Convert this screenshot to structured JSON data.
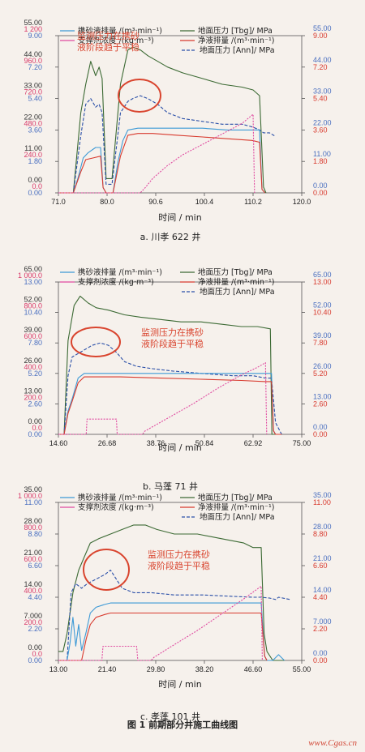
{
  "figure_caption": "图 1 前期部分井施工曲线图",
  "watermark": "www.Cgas.cn",
  "chart_data": [
    {
      "type": "line",
      "subcaption": "a. 川孝 622 井",
      "xlabel": "时间 / min",
      "x_ticks": [
        "71.0",
        "80.0",
        "90.6",
        "100.4",
        "110.2",
        "120.0"
      ],
      "xlim": [
        71.0,
        120.0
      ],
      "left_axes": [
        {
          "name": "c1",
          "color": "#4a6fc0",
          "ticks": [
            "0.00",
            "1.80",
            "3.60",
            "5.40",
            "7.20",
            "9.00"
          ],
          "min": 0,
          "max": 9
        },
        {
          "name": "c2",
          "color": "#d83a6a",
          "ticks": [
            "0.0",
            "240.0",
            "480.0",
            "720.0",
            "960.0",
            "1 200"
          ],
          "min": 0,
          "max": 1200
        },
        {
          "name": "c3",
          "color": "#333333",
          "ticks": [
            "0.00",
            "11.00",
            "22.00",
            "33.00",
            "44.00",
            "55.00"
          ],
          "min": 0,
          "max": 55
        }
      ],
      "right_axes": [
        {
          "name": "r1",
          "color": "#d83a2e",
          "ticks": [
            "0.00",
            "1.80",
            "3.60",
            "5.40",
            "7.20",
            "9.00"
          ],
          "min": 0,
          "max": 9
        },
        {
          "name": "r2",
          "color": "#4a6fc0",
          "ticks": [
            "0.00",
            "11.00",
            "22.00",
            "33.00",
            "44.00",
            "55.00"
          ],
          "min": 0,
          "max": 55
        }
      ],
      "legend": [
        "携砂液排量 /(m³·min⁻¹)",
        "支撑剂浓度 /(kg·m⁻³)",
        "地面压力 [Tbg]/ MPa",
        "净液排量 /(m³·min⁻¹)",
        "地面压力 [Ann]/ MPa"
      ],
      "annotation": [
        "监测压力在携砂",
        "液阶段趋于平稳"
      ],
      "series": [
        {
          "name": "地面压力 [Tbg]/ MPa",
          "color": "#3c6a34",
          "axis": "c3",
          "x": [
            71,
            74,
            75.5,
            76.5,
            77.5,
            78.5,
            79.2,
            79.8,
            80.6,
            81.8,
            83.5,
            85,
            86,
            87.5,
            89,
            91,
            93,
            96,
            100,
            104,
            108,
            110.2,
            111.5,
            112.3,
            112.8
          ],
          "y": [
            0,
            0,
            28,
            38,
            46,
            41,
            44,
            40,
            5,
            5,
            38,
            50,
            51,
            50,
            48,
            46,
            44,
            42,
            40,
            38,
            37,
            36,
            34,
            2,
            0
          ]
        },
        {
          "name": "地面压力 [Ann]/ MPa",
          "color": "#2a4fa8",
          "axis": "c3",
          "x": [
            71,
            74,
            75.5,
            76.5,
            77.5,
            78.5,
            79.2,
            79.8,
            80.6,
            81.8,
            83.5,
            85,
            86,
            87.5,
            89,
            91,
            93,
            96,
            100,
            104,
            108,
            110.2,
            111.5,
            112.3,
            113.5,
            114.5
          ],
          "y": [
            0,
            0,
            20,
            31,
            33,
            30,
            31,
            28,
            3,
            3,
            28,
            32,
            33,
            34,
            33,
            31,
            28,
            26,
            25,
            24,
            24,
            23,
            22,
            21,
            21,
            20
          ]
        },
        {
          "name": "携砂液排量 /(m³·min⁻¹)",
          "color": "#3d9ad6",
          "axis": "r1",
          "x": [
            71,
            74,
            75,
            76,
            77,
            78.5,
            79.5,
            80,
            80.6,
            82,
            83,
            84,
            85,
            87,
            90,
            95,
            100,
            105,
            110,
            111.5,
            112,
            112.6
          ],
          "y": [
            0,
            0,
            0.9,
            2.0,
            2.3,
            2.6,
            2.6,
            0.3,
            0,
            0,
            1.8,
            3.0,
            3.6,
            3.7,
            3.7,
            3.7,
            3.7,
            3.6,
            3.6,
            3.6,
            0.2,
            0
          ]
        },
        {
          "name": "净液排量 /(m³·min⁻¹)",
          "color": "#d83a2e",
          "axis": "r1",
          "x": [
            71,
            74,
            75.5,
            76.5,
            78,
            79.5,
            80,
            80.6,
            82,
            83.5,
            85,
            87,
            90,
            95,
            100,
            105,
            110,
            111.5,
            112,
            112.6
          ],
          "y": [
            0,
            0,
            1.2,
            1.9,
            2.0,
            2.1,
            0.3,
            0,
            0,
            2.1,
            3.3,
            3.4,
            3.4,
            3.3,
            3.2,
            3.1,
            3.0,
            2.9,
            0.2,
            0
          ]
        },
        {
          "name": "支撑剂浓度 /(kg·m⁻³)",
          "color": "#e04aa0",
          "axis": "c2",
          "x": [
            71,
            87.5,
            88.5,
            90,
            93,
            96,
            100,
            104,
            108,
            110.2,
            110.5
          ],
          "y": [
            0,
            0,
            40,
            110,
            210,
            290,
            370,
            450,
            530,
            600,
            0
          ]
        }
      ]
    },
    {
      "type": "line",
      "subcaption": "b. 马蓬 71 井",
      "xlabel": "时间 / min",
      "x_ticks": [
        "14.60",
        "26.68",
        "38.76",
        "50.84",
        "62.92",
        "75.00"
      ],
      "xlim": [
        14.6,
        75.0
      ],
      "left_axes": [
        {
          "name": "c1",
          "color": "#4a6fc0",
          "ticks": [
            "0.00",
            "2.60",
            "5.20",
            "7.80",
            "10.40",
            "13.00"
          ],
          "min": 0,
          "max": 13
        },
        {
          "name": "c2",
          "color": "#d83a6a",
          "ticks": [
            "0.0",
            "200.0",
            "400.0",
            "600.0",
            "800.0",
            "1 000.0"
          ],
          "min": 0,
          "max": 1000
        },
        {
          "name": "c3",
          "color": "#333333",
          "ticks": [
            "0.00",
            "13.00",
            "26.00",
            "39.00",
            "52.00",
            "65.00"
          ],
          "min": 0,
          "max": 65
        }
      ],
      "right_axes": [
        {
          "name": "r1",
          "color": "#d83a2e",
          "ticks": [
            "0.00",
            "2.60",
            "5.20",
            "7.80",
            "10.40",
            "13.00"
          ],
          "min": 0,
          "max": 13
        },
        {
          "name": "r2",
          "color": "#4a6fc0",
          "ticks": [
            "0.00",
            "13.00",
            "26.00",
            "39.00",
            "52.00",
            "65.00"
          ],
          "min": 0,
          "max": 65
        }
      ],
      "legend": [
        "携砂液排量 /(m³·min⁻¹)",
        "地面压力 [Tbg]/ MPa",
        "支撑剂浓度 /(kg·m⁻³)",
        "净液排量 /(m³·min⁻¹)",
        "地面压力 [Ann]/ MPa"
      ],
      "annotation": [
        "监测压力在携砂",
        "液阶段趋于平稳"
      ],
      "series": [
        {
          "name": "地面压力 [Tbg]/ MPa",
          "color": "#3c6a34",
          "axis": "c3",
          "x": [
            14.6,
            16,
            17,
            18.5,
            20,
            22,
            24,
            27,
            31,
            35,
            40,
            45,
            50,
            55,
            60,
            64,
            67.2,
            67.6,
            68.5,
            70
          ],
          "y": [
            0,
            0,
            40,
            55,
            59,
            56,
            54,
            53,
            51,
            50,
            49,
            48,
            48,
            47,
            46,
            46,
            45,
            0,
            0,
            0
          ]
        },
        {
          "name": "地面压力 [Ann]/ MPa",
          "color": "#2a4fa8",
          "axis": "c3",
          "x": [
            14.6,
            16,
            17,
            18,
            19,
            21,
            23,
            25,
            27,
            29,
            31,
            34,
            38,
            43,
            50,
            58,
            63,
            66,
            67.5,
            68.5,
            70
          ],
          "y": [
            0,
            0,
            25,
            33,
            34,
            36,
            38,
            39,
            38,
            35,
            31,
            29,
            28,
            27,
            26,
            25,
            25,
            24,
            24,
            5,
            0
          ]
        },
        {
          "name": "携砂液排量 /(m³·min⁻¹)",
          "color": "#3d9ad6",
          "axis": "r1",
          "x": [
            14.6,
            16,
            17,
            18,
            19.5,
            21,
            30,
            40,
            50,
            60,
            66,
            67.5,
            68,
            68.5
          ],
          "y": [
            0,
            0,
            2.0,
            3.0,
            4.8,
            5.2,
            5.2,
            5.2,
            5.2,
            5.2,
            5.2,
            5.2,
            0.3,
            0
          ]
        },
        {
          "name": "净液排量 /(m³·min⁻¹)",
          "color": "#d83a2e",
          "axis": "r1",
          "x": [
            14.6,
            16,
            17,
            18,
            19.5,
            21,
            30,
            40,
            50,
            60,
            66,
            67.5,
            68,
            68.5,
            70
          ],
          "y": [
            0,
            0,
            1.8,
            2.8,
            4.4,
            4.9,
            4.9,
            4.8,
            4.7,
            4.6,
            4.5,
            4.5,
            0.3,
            0,
            0
          ]
        },
        {
          "name": "支撑剂浓度 /(kg·m⁻³)",
          "color": "#e04aa0",
          "axis": "c2",
          "x": [
            14.6,
            21.5,
            21.7,
            29,
            29.2,
            35.5,
            36,
            42,
            48,
            54,
            60,
            64,
            66,
            66.3
          ],
          "y": [
            0,
            0,
            100,
            100,
            0,
            0,
            20,
            110,
            200,
            300,
            390,
            440,
            470,
            0
          ]
        }
      ]
    },
    {
      "type": "line",
      "subcaption": "c. 孝蓬 101 井",
      "xlabel": "时间 / min",
      "x_ticks": [
        "13.00",
        "21.40",
        "29.80",
        "38.20",
        "46.60",
        "55.00"
      ],
      "xlim": [
        13.0,
        55.0
      ],
      "left_axes": [
        {
          "name": "c1",
          "color": "#4a6fc0",
          "ticks": [
            "0.00",
            "2.20",
            "4.40",
            "6.60",
            "8.80",
            "11.00"
          ],
          "min": 0,
          "max": 11
        },
        {
          "name": "c2",
          "color": "#d83a6a",
          "ticks": [
            "0.0",
            "200.0",
            "400.0",
            "600.0",
            "800.0",
            "1 000.0"
          ],
          "min": 0,
          "max": 1000
        },
        {
          "name": "c3",
          "color": "#333333",
          "ticks": [
            "0.00",
            "7.000",
            "14.00",
            "21.00",
            "28.00",
            "35.00"
          ],
          "min": 0,
          "max": 35
        }
      ],
      "right_axes": [
        {
          "name": "r1",
          "color": "#d83a2e",
          "ticks": [
            "0.00",
            "2.20",
            "4.40",
            "6.60",
            "8.80",
            "11.00"
          ],
          "min": 0,
          "max": 11
        },
        {
          "name": "r2",
          "color": "#4a6fc0",
          "ticks": [
            "0.00",
            "7.000",
            "14.00",
            "21.00",
            "28.00",
            "35.00"
          ],
          "min": 0,
          "max": 35
        }
      ],
      "legend": [
        "携砂液排量 /(m³·min⁻¹)",
        "地面压力 [Tbg]/ MPa",
        "支撑剂浓度 /(kg·m⁻³)",
        "净液排量 /(m³·min⁻¹)",
        "地面压力 [Ann]/ MPa"
      ],
      "annotation": [
        "监测压力在携砂",
        "液阶段趋于平稳"
      ],
      "series": [
        {
          "name": "地面压力 [Tbg]/ MPa",
          "color": "#3c6a34",
          "axis": "c3",
          "x": [
            13,
            13.8,
            14.5,
            15.5,
            16.5,
            17.5,
            18.5,
            20,
            22,
            24,
            26,
            28,
            30,
            33,
            37,
            41,
            45,
            46.6,
            48,
            48.5,
            49,
            50,
            51,
            52
          ],
          "y": [
            2,
            2,
            6,
            15,
            20,
            23,
            26,
            27,
            28,
            29,
            30,
            30,
            29,
            28,
            28,
            27,
            26,
            25,
            25,
            6,
            2,
            0,
            0,
            0
          ]
        },
        {
          "name": "地面压力 [Ann]/ MPa",
          "color": "#2a4fa8",
          "axis": "c3",
          "x": [
            13,
            14.5,
            15.2,
            16,
            17,
            18,
            19.5,
            21,
            22,
            23,
            24,
            26,
            29,
            33,
            38,
            43,
            46.6,
            48,
            49.5,
            50.5,
            51,
            53
          ],
          "y": [
            0,
            0,
            15,
            17,
            16,
            17,
            18,
            19,
            20,
            18,
            16,
            15,
            15,
            14.5,
            14.5,
            14.2,
            14,
            14,
            13.8,
            13.5,
            14,
            13.5
          ]
        },
        {
          "name": "携砂液排量 /(m³·min⁻¹)",
          "color": "#3d9ad6",
          "axis": "r1",
          "x": [
            13,
            14.5,
            15,
            15.5,
            16,
            16.5,
            17,
            17.8,
            18.5,
            19.5,
            21,
            22,
            30,
            38,
            46.6,
            48,
            48.6,
            49,
            50,
            51,
            52
          ],
          "y": [
            0,
            0,
            1.2,
            3,
            1,
            2.5,
            0.7,
            2.0,
            3.3,
            3.7,
            3.9,
            4.0,
            4.0,
            4.0,
            4.0,
            4.0,
            0.3,
            0,
            0,
            0.4,
            0
          ]
        },
        {
          "name": "净液排量 /(m³·min⁻¹)",
          "color": "#d83a2e",
          "axis": "r1",
          "x": [
            13,
            17,
            17.8,
            18.5,
            19.5,
            21,
            22,
            30,
            38,
            46.6,
            48,
            48.6,
            49
          ],
          "y": [
            0,
            0,
            1.5,
            2.5,
            3.0,
            3.2,
            3.3,
            3.3,
            3.3,
            3.3,
            3.3,
            0.3,
            0
          ]
        },
        {
          "name": "支撑剂浓度 /(kg·m⁻³)",
          "color": "#e04aa0",
          "axis": "c2",
          "x": [
            13,
            20.5,
            20.7,
            26.5,
            26.7,
            29,
            29.5,
            33,
            37,
            41,
            45,
            48,
            48.2
          ],
          "y": [
            0,
            0,
            90,
            90,
            0,
            0,
            20,
            100,
            190,
            290,
            390,
            470,
            0
          ]
        }
      ]
    }
  ]
}
